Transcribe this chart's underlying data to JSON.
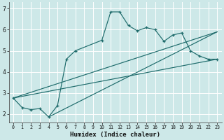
{
  "xlabel": "Humidex (Indice chaleur)",
  "bg_color": "#cde8e8",
  "line_color": "#1e6b6b",
  "grid_color": "#ffffff",
  "xlim": [
    -0.5,
    23.5
  ],
  "ylim": [
    1.6,
    7.3
  ],
  "xticks": [
    0,
    1,
    2,
    3,
    4,
    5,
    6,
    7,
    8,
    9,
    10,
    11,
    12,
    13,
    14,
    15,
    16,
    17,
    18,
    19,
    20,
    21,
    22,
    23
  ],
  "yticks": [
    2,
    3,
    4,
    5,
    6,
    7
  ],
  "main_x": [
    0,
    1,
    2,
    3,
    4,
    5,
    6,
    7,
    10,
    11,
    12,
    13,
    14,
    15,
    16,
    17,
    18,
    19,
    20,
    21,
    22,
    23
  ],
  "main_y": [
    2.75,
    2.3,
    2.2,
    2.25,
    1.85,
    2.4,
    4.6,
    5.0,
    5.5,
    6.85,
    6.85,
    6.2,
    5.95,
    6.1,
    6.0,
    5.45,
    5.75,
    5.85,
    5.0,
    4.75,
    4.6,
    4.6
  ],
  "line1_x": [
    0,
    23
  ],
  "line1_y": [
    2.75,
    5.9
  ],
  "line2_x": [
    0,
    23
  ],
  "line2_y": [
    2.75,
    4.6
  ],
  "line3_x": [
    4,
    23
  ],
  "line3_y": [
    1.85,
    5.9
  ]
}
